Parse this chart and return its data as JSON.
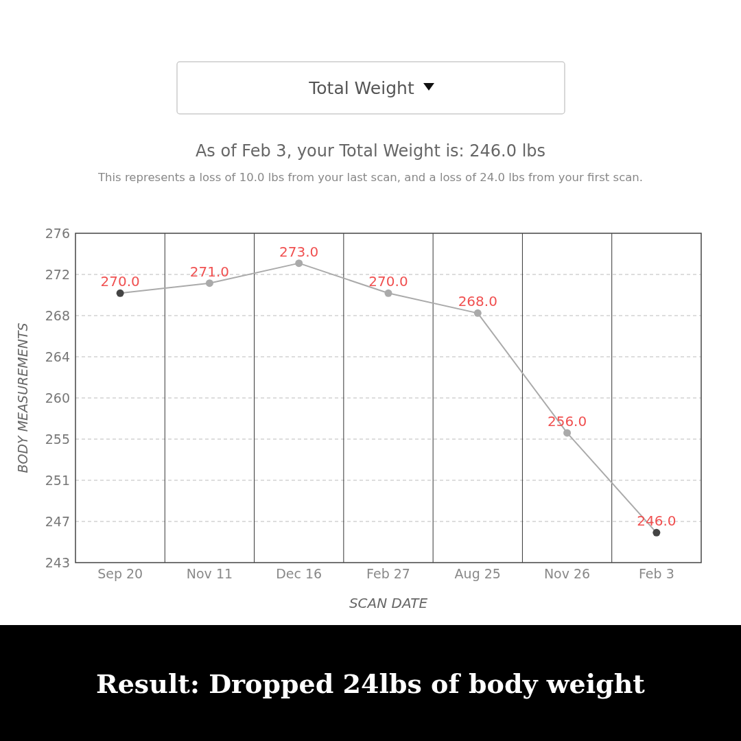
{
  "chart_data": {
    "type": "line",
    "title": "As of Feb 3, your Total Weight is: 246.0 lbs",
    "subtitle": "This represents a loss of 10.0 lbs from your last scan, and a loss of 24.0 lbs from your first scan.",
    "xlabel": "SCAN DATE",
    "ylabel": "BODY MEASUREMENTS",
    "annotations": [
      "Total Weight",
      "Result: Dropped 24lbs of body weight"
    ],
    "categories": [
      "Sep 20",
      "Nov 11",
      "Dec 16",
      "Feb 27",
      "Aug 25",
      "Nov 26",
      "Feb 3"
    ],
    "series": [
      {
        "color": "#aaaaaa",
        "colors": [
          "#444444",
          "#aaaaaa",
          "#aaaaaa",
          "#aaaaaa",
          "#aaaaaa",
          "#aaaaaa",
          "#444444"
        ],
        "values": [
          270,
          271,
          273,
          270,
          268,
          256,
          246
        ],
        "value_labels": [
          "270.0",
          "271.0",
          "273.0",
          "270.0",
          "268.0",
          "256.0",
          "246.0"
        ]
      }
    ],
    "ylim": [
      243,
      276
    ],
    "yticks": [
      243,
      {
        "value": 247.125,
        "label": "247"
      },
      {
        "value": 251.25,
        "label": "251"
      },
      {
        "value": 255.375,
        "label": "255"
      },
      {
        "value": 259.5,
        "label": "260"
      },
      {
        "value": 263.625,
        "label": "264"
      },
      {
        "value": 267.75,
        "label": "268"
      },
      {
        "value": 271.875,
        "label": "272"
      },
      276
    ],
    "grid": true,
    "marker": "circle",
    "line_style": "solid"
  }
}
